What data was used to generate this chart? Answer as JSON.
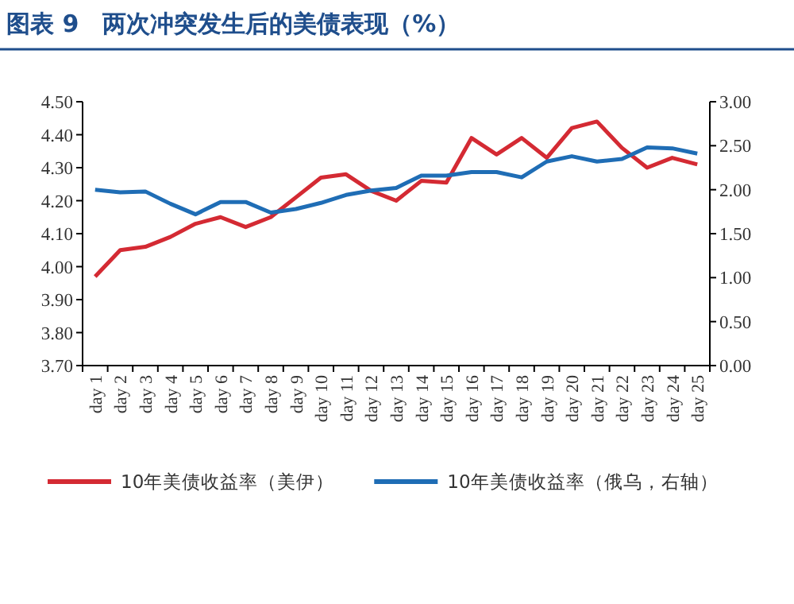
{
  "chart_data": {
    "type": "line",
    "title": "图表 9　两次冲突发生后的美债表现（%）",
    "categories": [
      "day 1",
      "day 2",
      "day 3",
      "day 4",
      "day 5",
      "day 6",
      "day 7",
      "day 8",
      "day 9",
      "day 10",
      "day 11",
      "day 12",
      "day 13",
      "day 14",
      "day 15",
      "day 16",
      "day 17",
      "day 18",
      "day 19",
      "day 20",
      "day 21",
      "day 22",
      "day 23",
      "day 24",
      "day 25"
    ],
    "series": [
      {
        "name": "10年美债收益率（美伊）",
        "color": "#d42a33",
        "values": [
          3.97,
          4.05,
          4.06,
          4.09,
          4.13,
          4.15,
          4.12,
          4.15,
          4.21,
          4.27,
          4.28,
          4.23,
          4.2,
          4.26,
          4.255,
          4.39,
          4.34,
          4.39,
          4.33,
          4.42,
          4.44,
          4.36,
          4.3,
          4.33,
          4.31
        ]
      },
      {
        "name": "10年美债收益率（俄乌，右轴）",
        "color": "#1f6db5",
        "axis": "y2",
        "values": [
          2.0,
          1.97,
          1.98,
          1.84,
          1.72,
          1.86,
          1.86,
          1.74,
          1.78,
          1.85,
          1.94,
          1.99,
          2.02,
          2.16,
          2.16,
          2.2,
          2.2,
          2.14,
          2.32,
          2.38,
          2.32,
          2.35,
          2.48,
          2.47,
          2.41
        ]
      }
    ],
    "ylim": [
      3.7,
      4.5
    ],
    "yticks": [
      {
        "value": 3.7,
        "label": "3.70"
      },
      {
        "value": 3.8,
        "label": "3.80"
      },
      {
        "value": 3.9,
        "label": "3.90"
      },
      {
        "value": 4.0,
        "label": "4.00"
      },
      {
        "value": 4.1,
        "label": "4.10"
      },
      {
        "value": 4.2,
        "label": "4.20"
      },
      {
        "value": 4.3,
        "label": "4.30"
      },
      {
        "value": 4.4,
        "label": "4.40"
      },
      {
        "value": 4.5,
        "label": "4.50"
      }
    ],
    "y2lim": [
      0,
      3
    ],
    "y2ticks": [
      {
        "value": 0,
        "label": "0.00"
      },
      {
        "value": 0.5,
        "label": "0.50"
      },
      {
        "value": 1,
        "label": "1.00"
      },
      {
        "value": 1.5,
        "label": "1.50"
      },
      {
        "value": 2,
        "label": "2.00"
      },
      {
        "value": 2.5,
        "label": "2.50"
      },
      {
        "value": 3,
        "label": "3.00"
      }
    ],
    "legend": "bottom",
    "grid": false
  }
}
